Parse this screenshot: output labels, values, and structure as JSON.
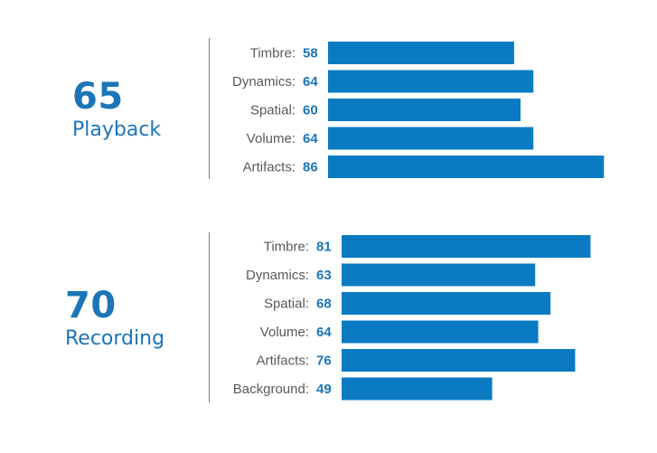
{
  "colors": {
    "accent": "#1b75b8",
    "bar": "#0a7bc2",
    "label": "#595959",
    "divider": "#7f7f7f"
  },
  "chart_data": [
    {
      "type": "bar",
      "orientation": "horizontal",
      "score": "65",
      "score_label": "Playback",
      "categories": [
        "Timbre:",
        "Dynamics:",
        "Spatial:",
        "Volume:",
        "Artifacts:"
      ],
      "values": [
        58,
        64,
        60,
        64,
        86
      ],
      "xlim": [
        0,
        100
      ]
    },
    {
      "type": "bar",
      "orientation": "horizontal",
      "score": "70",
      "score_label": "Recording",
      "categories": [
        "Timbre:",
        "Dynamics:",
        "Spatial:",
        "Volume:",
        "Artifacts:",
        "Background:"
      ],
      "values": [
        81,
        63,
        68,
        64,
        76,
        49
      ],
      "xlim": [
        0,
        100
      ]
    }
  ]
}
